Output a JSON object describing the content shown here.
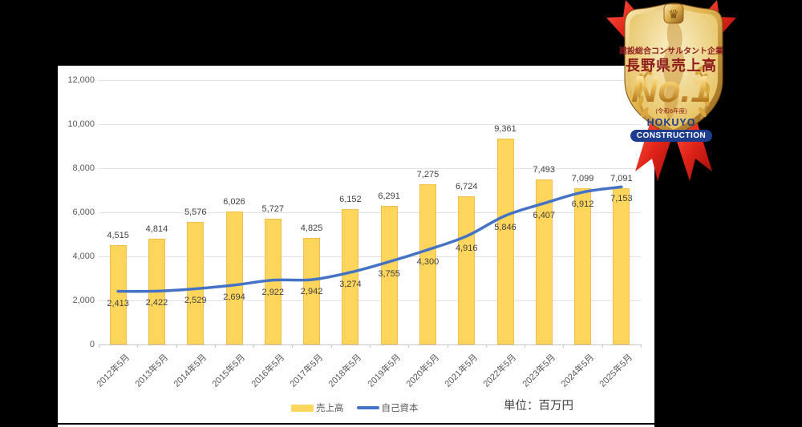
{
  "badge": {
    "line1": "建設総合コンサルタント企業",
    "line2": "長野県売上高",
    "rank": "No.1",
    "rank_note": "(令和6年度)",
    "company_line1": "HOKUYO",
    "company_line2": "CONSTRUCTION",
    "colors": {
      "text_red": "#8F1D1D",
      "ribbon_red": "#D6281E",
      "gold": "#D9A93F",
      "navy": "#1E3D8F"
    }
  },
  "chart_data": {
    "type": "bar",
    "categories": [
      "2012年5月",
      "2013年5月",
      "2014年5月",
      "2015年5月",
      "2016年5月",
      "2017年5月",
      "2018年5月",
      "2019年5月",
      "2020年5月",
      "2021年5月",
      "2022年5月",
      "2023年5月",
      "2024年5月",
      "2025年5月"
    ],
    "series": [
      {
        "name": "売上高",
        "type": "bar",
        "color": "#FFD65C",
        "values": [
          4515,
          4814,
          5576,
          6026,
          5727,
          4825,
          6152,
          6291,
          7275,
          6724,
          9361,
          7493,
          7099,
          7091
        ]
      },
      {
        "name": "自己資本",
        "type": "line",
        "color": "#4472C4",
        "values": [
          2413,
          2422,
          2529,
          2694,
          2922,
          2942,
          3274,
          3755,
          4300,
          4916,
          5846,
          6407,
          6912,
          7153
        ]
      }
    ],
    "ylim": [
      0,
      12000
    ],
    "ytick_interval": 2000,
    "ytick_labels": [
      "0",
      "2,000",
      "4,000",
      "6,000",
      "8,000",
      "10,000",
      "12,000"
    ],
    "grid": true,
    "legend_position": "bottom",
    "unit_label": "単位：百万円"
  }
}
